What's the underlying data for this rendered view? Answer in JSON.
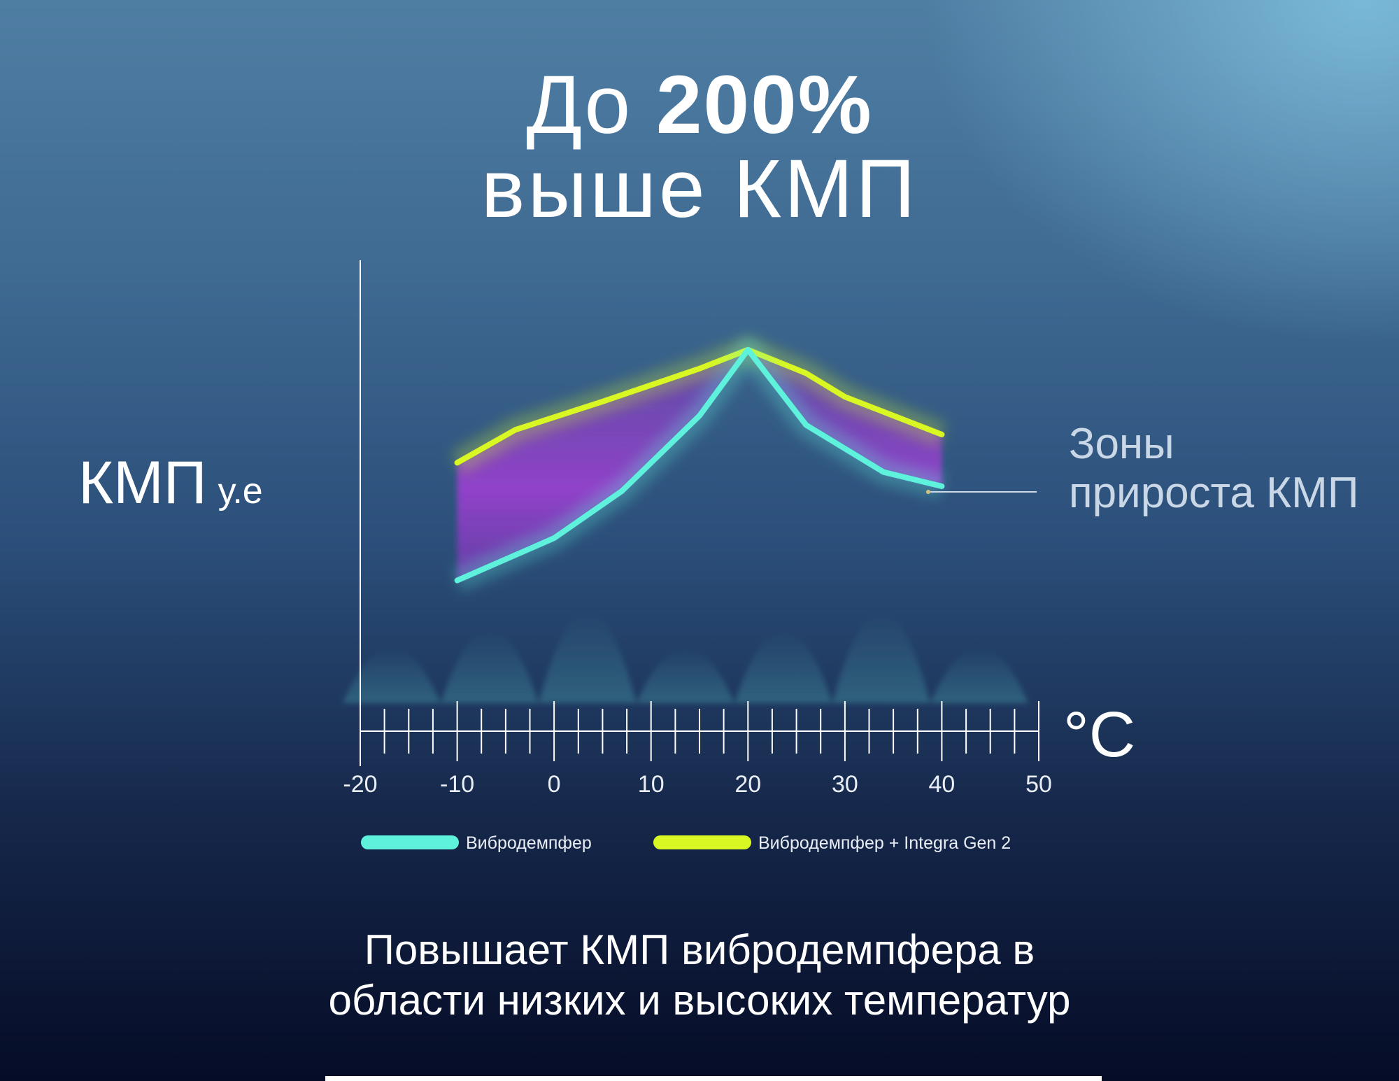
{
  "title": {
    "prefix": "До",
    "highlight": "200%",
    "line2": "выше КМП"
  },
  "footer": {
    "line1": "Повышает КМП вибродемпфера в",
    "line2": "области низких и высоких температур"
  },
  "colors": {
    "series1": "#5ef2dc",
    "series2": "#d9f722",
    "zone": "#9a3fd0"
  },
  "chart_data": {
    "type": "line",
    "title": "",
    "xlabel": "°C",
    "ylabel": "КМП",
    "ylabel_unit": "у.е",
    "xlim": [
      -20,
      50
    ],
    "ylim": [
      0,
      100
    ],
    "x_ticks": [
      "-20",
      "-10",
      "0",
      "10",
      "20",
      "30",
      "40",
      "50"
    ],
    "zone_label": "Зоны прироста КМП",
    "series": [
      {
        "name": "Вибродемпфер",
        "x": [
          -10,
          0,
          7,
          15,
          20,
          26,
          34,
          40
        ],
        "y": [
          32,
          41,
          51,
          67,
          81,
          65,
          55,
          52
        ]
      },
      {
        "name": "Вибродемпфер + Integra Gen 2",
        "x": [
          -10,
          -4,
          5,
          15,
          20,
          26,
          30,
          40
        ],
        "y": [
          57,
          64,
          70,
          77,
          81,
          76,
          71,
          63
        ]
      }
    ]
  }
}
